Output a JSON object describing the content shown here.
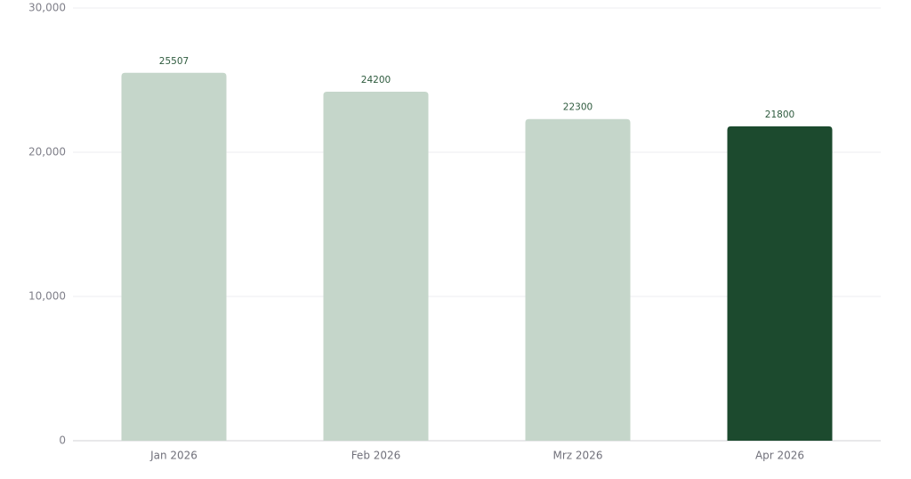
{
  "chart_data": {
    "type": "bar",
    "categories": [
      "Jan 2026",
      "Feb 2026",
      "Mrz 2026",
      "Apr 2026"
    ],
    "values": [
      25507,
      24200,
      22300,
      21800
    ],
    "colors": [
      "#c5d6ca",
      "#c5d6ca",
      "#c5d6ca",
      "#1c4a2e"
    ],
    "label_color": "#2d5a3d",
    "ylim": [
      0,
      30000
    ],
    "yticks": [
      0,
      {
        "value": 10000,
        "label": "10,000"
      },
      {
        "value": 20000,
        "label": "20,000"
      },
      {
        "value": 30000,
        "label": "30,000"
      }
    ],
    "grid": true
  }
}
